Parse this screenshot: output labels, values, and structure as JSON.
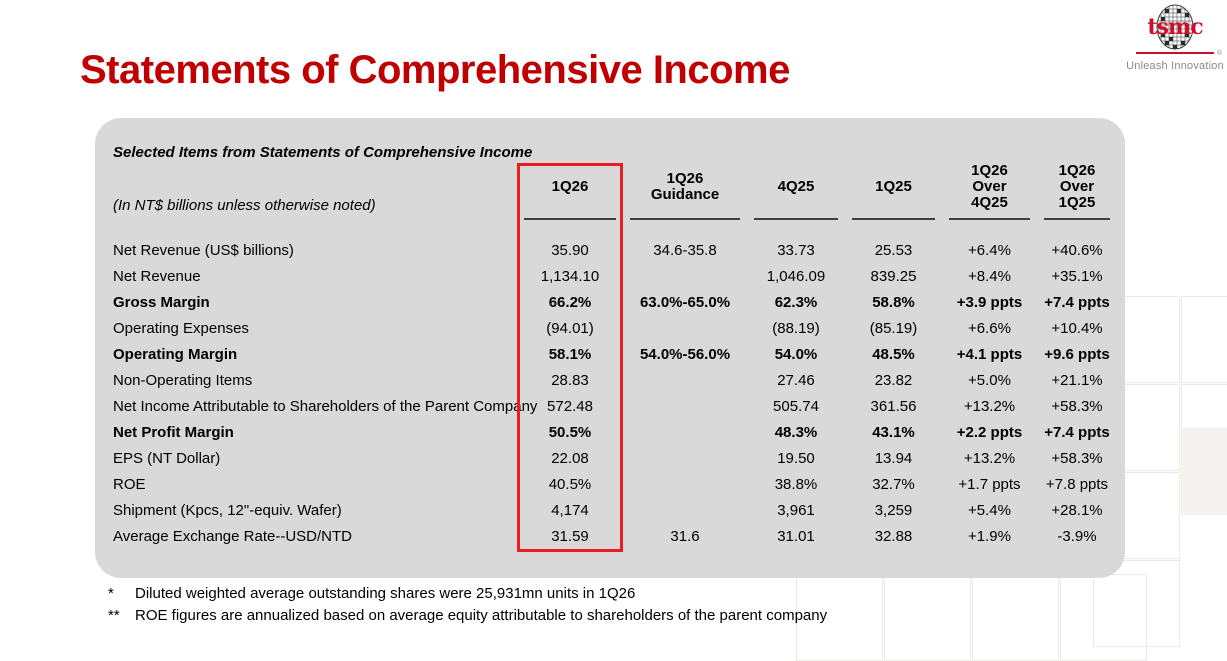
{
  "logo": {
    "brand": "tsmc",
    "tagline": "Unleash Innovation",
    "reg_mark": "®"
  },
  "title": "Statements of Comprehensive Income",
  "panel": {
    "caption": "Selected Items from Statements of Comprehensive Income",
    "unit_note": "(In NT$ billions unless otherwise noted)"
  },
  "chart_data": {
    "type": "table",
    "columns": [
      "1Q26",
      "1Q26\nGuidance",
      "4Q25",
      "1Q25",
      "1Q26\nOver\n4Q25",
      "1Q26\nOver\n1Q25"
    ],
    "highlight_column": "1Q26",
    "rows": [
      {
        "label": "Net Revenue (US$ billions)",
        "bold": false,
        "values": [
          "35.90",
          "34.6-35.8",
          "33.73",
          "25.53",
          "+6.4%",
          "+40.6%"
        ]
      },
      {
        "label": "Net Revenue",
        "bold": false,
        "values": [
          "1,134.10",
          "",
          "1,046.09",
          "839.25",
          "+8.4%",
          "+35.1%"
        ]
      },
      {
        "label": "Gross Margin",
        "bold": true,
        "values": [
          "66.2%",
          "63.0%-65.0%",
          "62.3%",
          "58.8%",
          "+3.9 ppts",
          "+7.4 ppts"
        ]
      },
      {
        "label": "Operating Expenses",
        "bold": false,
        "values": [
          "(94.01)",
          "",
          "(88.19)",
          "(85.19)",
          "+6.6%",
          "+10.4%"
        ]
      },
      {
        "label": "Operating Margin",
        "bold": true,
        "values": [
          "58.1%",
          "54.0%-56.0%",
          "54.0%",
          "48.5%",
          "+4.1 ppts",
          "+9.6 ppts"
        ]
      },
      {
        "label": "Non-Operating Items",
        "bold": false,
        "values": [
          "28.83",
          "",
          "27.46",
          "23.82",
          "+5.0%",
          "+21.1%"
        ]
      },
      {
        "label": "Net Income Attributable to Shareholders of the Parent Company",
        "bold": false,
        "values": [
          "572.48",
          "",
          "505.74",
          "361.56",
          "+13.2%",
          "+58.3%"
        ]
      },
      {
        "label": "Net Profit Margin",
        "bold": true,
        "values": [
          "50.5%",
          "",
          "48.3%",
          "43.1%",
          "+2.2 ppts",
          "+7.4 ppts"
        ]
      },
      {
        "label": "EPS (NT Dollar)",
        "bold": false,
        "values": [
          "22.08",
          "",
          "19.50",
          "13.94",
          "+13.2%",
          "+58.3%"
        ]
      },
      {
        "label": "ROE",
        "bold": false,
        "values": [
          "40.5%",
          "",
          "38.8%",
          "32.7%",
          "+1.7 ppts",
          "+7.8 ppts"
        ]
      },
      {
        "label": "Shipment (Kpcs, 12\"-equiv. Wafer)",
        "bold": false,
        "values": [
          "4,174",
          "",
          "3,961",
          "3,259",
          "+5.4%",
          "+28.1%"
        ]
      },
      {
        "label": "Average Exchange Rate--USD/NTD",
        "bold": false,
        "values": [
          "31.59",
          "31.6",
          "31.01",
          "32.88",
          "+1.9%",
          "-3.9%"
        ]
      }
    ]
  },
  "footnotes": [
    {
      "marker": "*",
      "text": "Diluted weighted average outstanding shares were 25,931mn units in 1Q26"
    },
    {
      "marker": "**",
      "text": "ROE figures are annualized based on average equity attributable to shareholders of the parent company"
    }
  ],
  "colors": {
    "title_red": "#C00000",
    "panel_gray": "#D9D9D9",
    "highlight_red": "#EC1C24",
    "logo_red": "#CE0E2D",
    "tagline_gray": "#8A8A8A"
  }
}
